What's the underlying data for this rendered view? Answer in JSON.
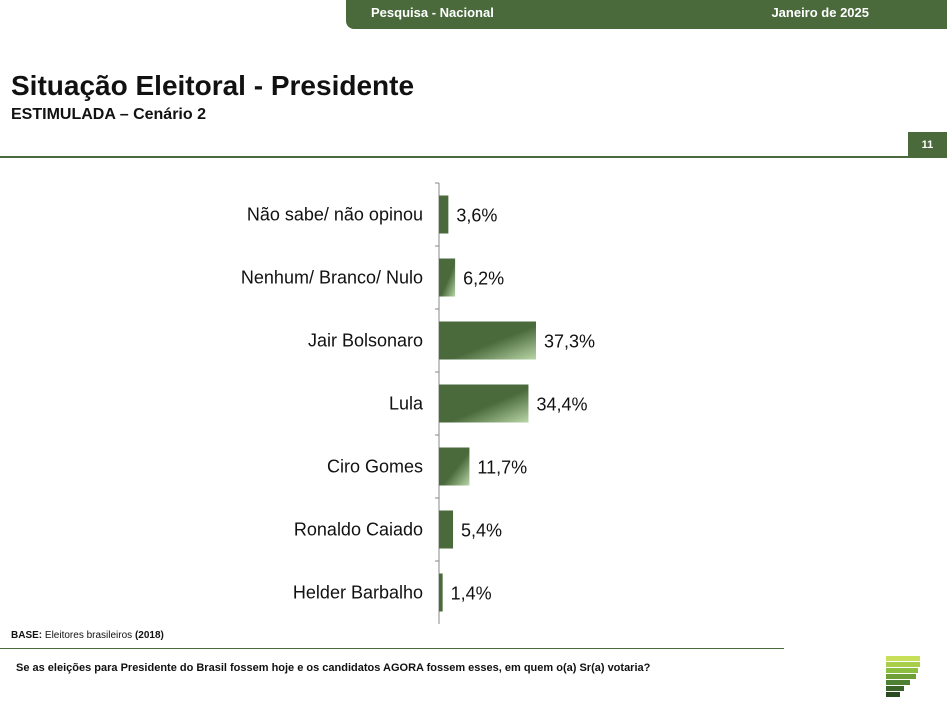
{
  "header": {
    "survey": "Pesquisa - Nacional",
    "date": "Janeiro de 2025",
    "page_number": "11"
  },
  "title": "Situação Eleitoral - Presidente",
  "subtitle": "ESTIMULADA – Cenário 2",
  "footer": {
    "base_label": "BASE:",
    "base_text": "Eleitores brasileiros",
    "base_year": "(2018)",
    "question": "Se as eleições para Presidente do Brasil fossem hoje e os candidatos AGORA fossem esses, em quem o(a) Sr(a) votaria?"
  },
  "colors": {
    "brand_green": "#4a6a3c",
    "bar_light": "#b9d6a6"
  },
  "chart_data": {
    "type": "bar",
    "orientation": "horizontal",
    "categories": [
      "Não sabe/ não opinou",
      "Nenhum/ Branco/ Nulo",
      "Jair Bolsonaro",
      "Lula",
      "Ciro Gomes",
      "Ronaldo Caiado",
      "Helder Barbalho"
    ],
    "values": [
      3.6,
      6.2,
      37.3,
      34.4,
      11.7,
      5.4,
      1.4
    ],
    "labels": [
      "3,6%",
      "6,2%",
      "37,3%",
      "34,4%",
      "11,7%",
      "5,4%",
      "1,4%"
    ],
    "grid": false,
    "legend": "none"
  }
}
